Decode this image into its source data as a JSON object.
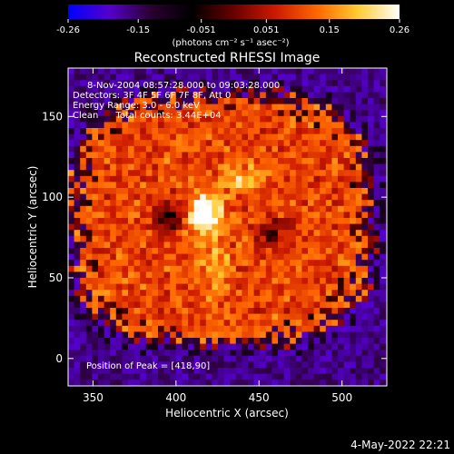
{
  "chart_data": {
    "type": "heatmap",
    "title": "Reconstructed RHESSI Image",
    "xlabel": "Heliocentric X (arcsec)",
    "ylabel": "Heliocentric Y (arcsec)",
    "xlim": [
      335,
      527
    ],
    "ylim": [
      -17,
      180
    ],
    "xticks": [
      350,
      400,
      450,
      500
    ],
    "yticks": [
      0,
      50,
      100,
      150
    ],
    "colorbar": {
      "label": "(photons cm⁻² s⁻¹ asec⁻²)",
      "ticks": [
        "-0.26",
        "-0.15",
        "-0.051",
        "0.051",
        "0.15",
        "0.26"
      ],
      "range": [
        -0.26,
        0.26
      ],
      "colormap": [
        "#0000ff",
        "#5500cc",
        "#2a0030",
        "#000000",
        "#6a0000",
        "#cc1a00",
        "#ff6600",
        "#ffcc33",
        "#ffffff"
      ]
    },
    "annotations": [
      "8-Nov-2004 08:57:28.000 to 09:03:28.000",
      "Detectors: 3F 4F 5F 6F 7F 8F, Att 0",
      "Energy Range: 3.0 - 6.0 keV",
      "Clean      Total counts: 3.44E+04"
    ],
    "peak_label": "Position of Peak = [418,90]",
    "peak": [
      418,
      90
    ],
    "peak_value": 0.26,
    "timestamp": "4-May-2022 22:21"
  },
  "colors": {
    "background": "#000000",
    "foreground": "#ffffff",
    "outside_region": "#3d1a6e"
  }
}
